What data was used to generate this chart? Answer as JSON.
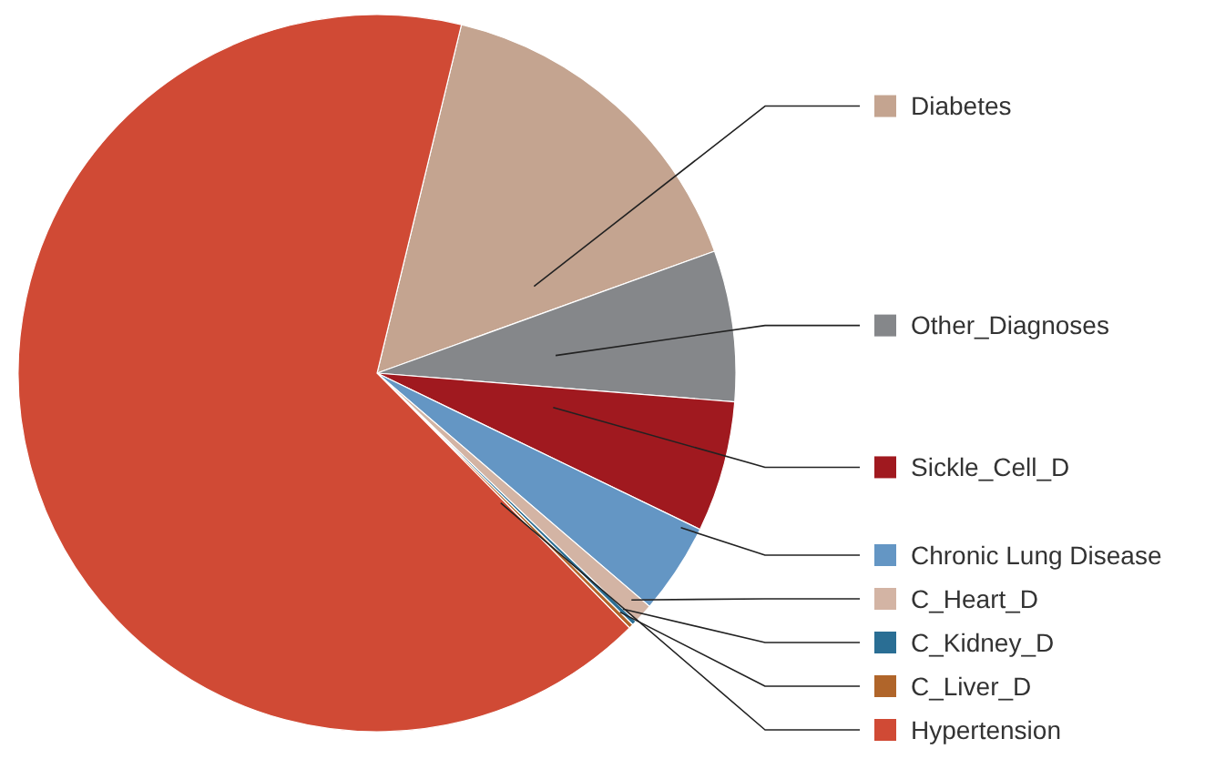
{
  "chart_data": {
    "type": "pie",
    "legend": "right",
    "categories": [
      "Diabetes",
      "Other_Diagnoses",
      "Sickle_Cell_D",
      "Chronic Lung Disease",
      "C_Heart_D",
      "C_Kidney_D",
      "C_Liver_D",
      "Hypertension"
    ],
    "values": [
      15.7,
      6.8,
      5.9,
      4.1,
      0.9,
      0.2,
      0.2,
      66.2
    ],
    "colors": [
      "#c4a490",
      "#85878a",
      "#a0191f",
      "#6496c4",
      "#d3b4a4",
      "#2a6e94",
      "#b0652a",
      "#d04a35"
    ]
  }
}
